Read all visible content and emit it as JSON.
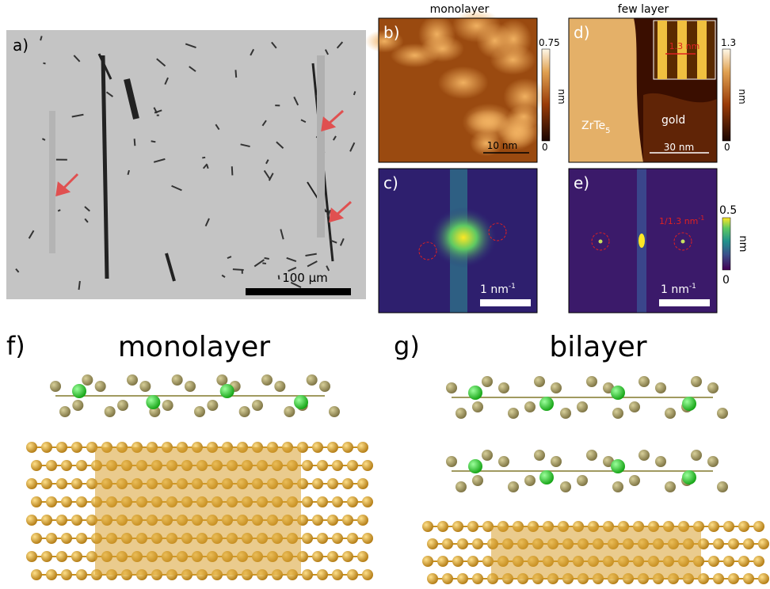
{
  "panels": {
    "a": {
      "label": "a)",
      "scalebar": "100 μm"
    },
    "headers": {
      "left": "monolayer",
      "right": "few layer"
    },
    "b": {
      "label": "b)",
      "scalebar": "10 nm",
      "colorbar": {
        "max": "0.75",
        "unit": "nm",
        "min": "0"
      }
    },
    "d": {
      "label": "d)",
      "inset": "1.3 nm",
      "material": {
        "main": "ZrTe",
        "sub": "5"
      },
      "substrate": "gold",
      "scalebar": "30 nm",
      "colorbar": {
        "max": "1.3",
        "unit": "nm",
        "min": "0"
      }
    },
    "c": {
      "label": "c)",
      "scalebar": {
        "main": "1 nm",
        "sup": "-1"
      }
    },
    "e": {
      "label": "e)",
      "annotation": {
        "main": "1/1.3 nm",
        "sup": "-1"
      },
      "scalebar": {
        "main": "1 nm",
        "sup": "-1"
      },
      "colorbar": {
        "max": "0.5",
        "unit": "nm",
        "min": "0"
      }
    },
    "f": {
      "label": "f)",
      "title": "monolayer"
    },
    "g": {
      "label": "g)",
      "title": "bilayer"
    }
  }
}
